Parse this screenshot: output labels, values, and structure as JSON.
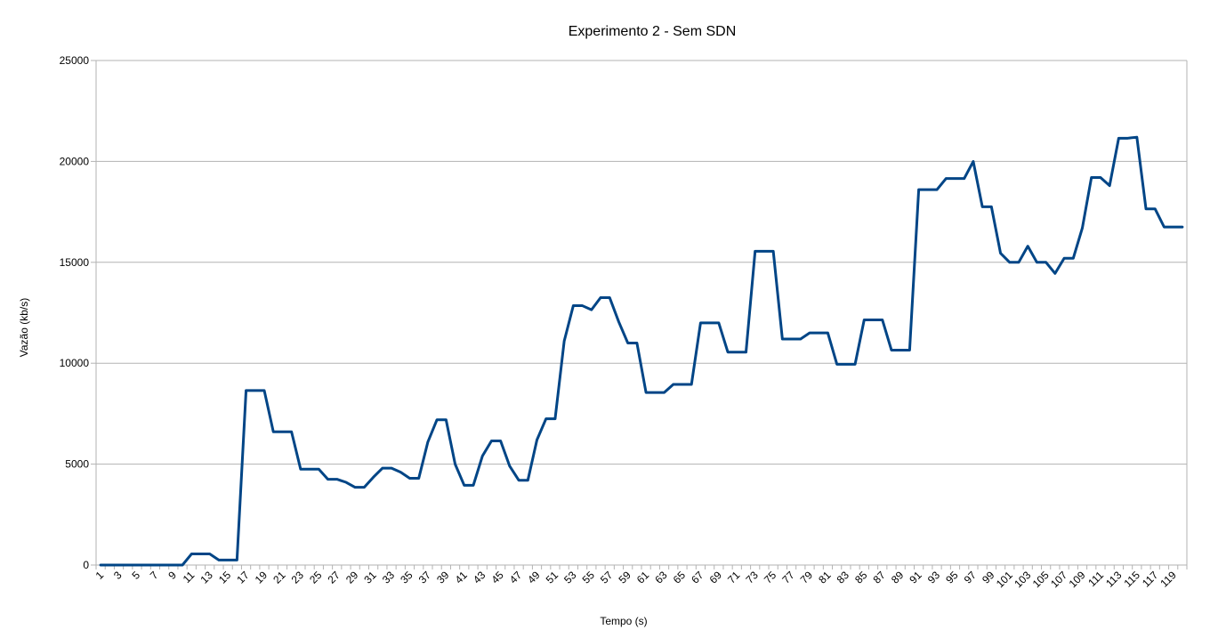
{
  "chart_data": {
    "type": "line",
    "title": "Experimento 2 - Sem SDN",
    "xlabel": "Tempo (s)",
    "ylabel": "Vazão (kb/s)",
    "ylim": [
      0,
      25000
    ],
    "yticks": [
      0,
      5000,
      10000,
      15000,
      20000,
      25000
    ],
    "grid": true,
    "legend": "none",
    "series_color": "#004586",
    "x": [
      1,
      2,
      3,
      4,
      5,
      6,
      7,
      8,
      9,
      10,
      11,
      12,
      13,
      14,
      15,
      16,
      17,
      18,
      19,
      20,
      21,
      22,
      23,
      24,
      25,
      26,
      27,
      28,
      29,
      30,
      31,
      32,
      33,
      34,
      35,
      36,
      37,
      38,
      39,
      40,
      41,
      42,
      43,
      44,
      45,
      46,
      47,
      48,
      49,
      50,
      51,
      52,
      53,
      54,
      55,
      56,
      57,
      58,
      59,
      60,
      61,
      62,
      63,
      64,
      65,
      66,
      67,
      68,
      69,
      70,
      71,
      72,
      73,
      74,
      75,
      76,
      77,
      78,
      79,
      80,
      81,
      82,
      83,
      84,
      85,
      86,
      87,
      88,
      89,
      90,
      91,
      92,
      93,
      94,
      95,
      96,
      97,
      98,
      99,
      100,
      101,
      102,
      103,
      104,
      105,
      106,
      107,
      108,
      109,
      110,
      111,
      112,
      113,
      114,
      115,
      116,
      117,
      118,
      119,
      120
    ],
    "x_tick_labels": [
      "1",
      "3",
      "5",
      "7",
      "9",
      "11",
      "13",
      "15",
      "17",
      "19",
      "21",
      "23",
      "25",
      "27",
      "29",
      "31",
      "33",
      "35",
      "37",
      "39",
      "41",
      "43",
      "45",
      "47",
      "49",
      "51",
      "53",
      "55",
      "57",
      "59",
      "61",
      "63",
      "65",
      "67",
      "69",
      "71",
      "73",
      "75",
      "77",
      "79",
      "81",
      "83",
      "85",
      "87",
      "89",
      "91",
      "93",
      "95",
      "97",
      "99",
      "101",
      "103",
      "105",
      "107",
      "109",
      "111",
      "113",
      "115",
      "117",
      "119"
    ],
    "values": [
      0,
      0,
      0,
      0,
      0,
      0,
      0,
      0,
      0,
      0,
      550,
      550,
      550,
      250,
      250,
      250,
      8650,
      8650,
      8650,
      6600,
      6600,
      6600,
      4750,
      4750,
      4750,
      4250,
      4250,
      4100,
      3850,
      3850,
      4350,
      4800,
      4800,
      4600,
      4300,
      4300,
      6100,
      7200,
      7200,
      5000,
      3950,
      3950,
      5400,
      6150,
      6150,
      4900,
      4200,
      4200,
      6200,
      7250,
      7250,
      11100,
      12850,
      12850,
      12650,
      13250,
      13250,
      12050,
      11000,
      11000,
      8550,
      8550,
      8550,
      8950,
      8950,
      8950,
      12000,
      12000,
      12000,
      10550,
      10550,
      10550,
      15550,
      15550,
      15550,
      11200,
      11200,
      11200,
      11500,
      11500,
      11500,
      9950,
      9950,
      9950,
      12150,
      12150,
      12150,
      10650,
      10650,
      10650,
      18600,
      18600,
      18600,
      19150,
      19150,
      19150,
      20000,
      17750,
      17750,
      15450,
      15000,
      15000,
      15800,
      15000,
      15000,
      14450,
      15200,
      15200,
      16700,
      19200,
      19200,
      18800,
      21150,
      21150,
      21200,
      17650,
      17650,
      16750,
      16750,
      16750
    ]
  }
}
